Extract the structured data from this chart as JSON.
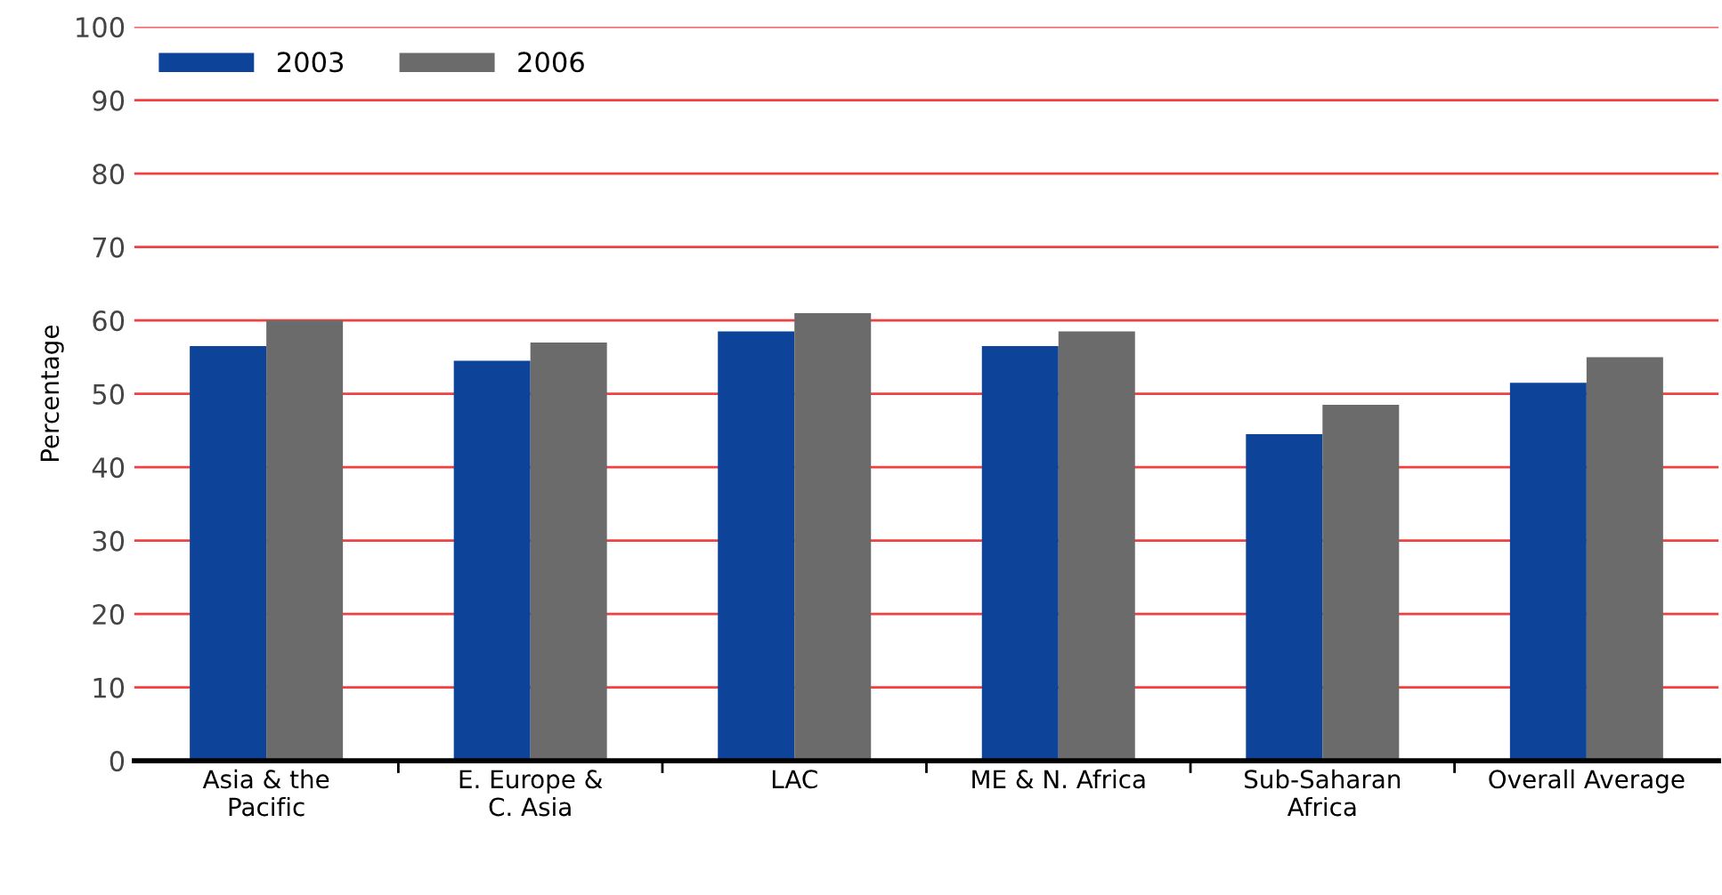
{
  "chart_data": {
    "type": "bar",
    "ylabel": "Percentage",
    "categories": [
      "Asia & the\nPacific",
      "E. Europe &\nC. Asia",
      "LAC",
      "ME & N. Africa",
      "Sub-Saharan\nAfrica",
      "Overall Average"
    ],
    "series": [
      {
        "name": "2003",
        "color": "#0d4499",
        "values": [
          56.5,
          54.5,
          58.5,
          56.5,
          44.5,
          51.5
        ]
      },
      {
        "name": "2006",
        "color": "#6b6b6b",
        "values": [
          60,
          57,
          61,
          58.5,
          48.5,
          55
        ]
      }
    ],
    "ylim": [
      0,
      100
    ],
    "yticks": [
      0,
      10,
      20,
      30,
      40,
      50,
      60,
      70,
      80,
      90,
      100
    ],
    "grid": "y",
    "legend": "top left"
  }
}
